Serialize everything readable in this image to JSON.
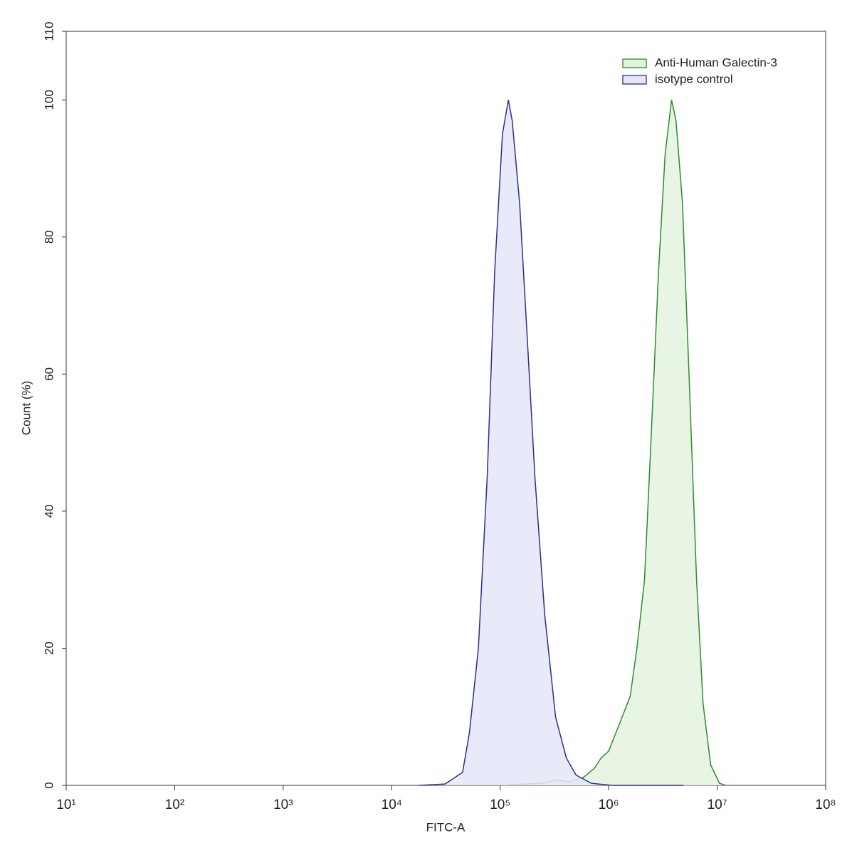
{
  "chart_data": {
    "type": "area",
    "xlabel": "FITC-A",
    "ylabel": "Count  (%)",
    "xscale": "log",
    "xlim": [
      10,
      100000000
    ],
    "ylim": [
      0,
      110
    ],
    "xticks": [
      {
        "value": 10,
        "label": "10¹"
      },
      {
        "value": 100,
        "label": "10²"
      },
      {
        "value": 1000,
        "label": "10³"
      },
      {
        "value": 10000,
        "label": "10⁴"
      },
      {
        "value": 100000,
        "label": "10⁵"
      },
      {
        "value": 1000000,
        "label": "10⁶"
      },
      {
        "value": 10000000,
        "label": "10⁷"
      },
      {
        "value": 100000000,
        "label": "10⁸"
      }
    ],
    "yticks": [
      0,
      20,
      40,
      60,
      80,
      100,
      110
    ],
    "legend": "upper right",
    "series": [
      {
        "name": "Anti-Human Galectin-3",
        "color": "#2e8b2e",
        "fill": "#e4f3e1",
        "x": [
          100000,
          240000,
          324000,
          437000,
          589000,
          741000,
          851000,
          1000000,
          1260000,
          1580000,
          1820000,
          2140000,
          2450000,
          2880000,
          3310000,
          3800000,
          4170000,
          4790000,
          5500000,
          6460000,
          7410000,
          8710000,
          10500000,
          12000000
        ],
        "values": [
          0,
          0.3,
          0.8,
          0.5,
          1.2,
          2.5,
          4,
          5,
          9,
          13,
          20,
          30,
          50,
          75,
          92,
          100,
          97,
          85,
          60,
          30,
          12,
          3,
          0.3,
          0
        ]
      },
      {
        "name": "isotype control",
        "color": "#2b2f8f",
        "fill": "#e4e5f8",
        "x": [
          18000,
          31000,
          45000,
          52000,
          63000,
          76000,
          89000,
          105000,
          119000,
          129000,
          151000,
          178000,
          209000,
          257000,
          324000,
          407000,
          501000,
          692000,
          1070000,
          4900000
        ],
        "values": [
          0,
          0.2,
          1.9,
          7.6,
          20,
          45,
          75,
          95,
          100,
          97,
          85,
          65,
          45,
          25,
          10,
          4,
          1.5,
          0.3,
          0,
          0
        ]
      }
    ]
  }
}
